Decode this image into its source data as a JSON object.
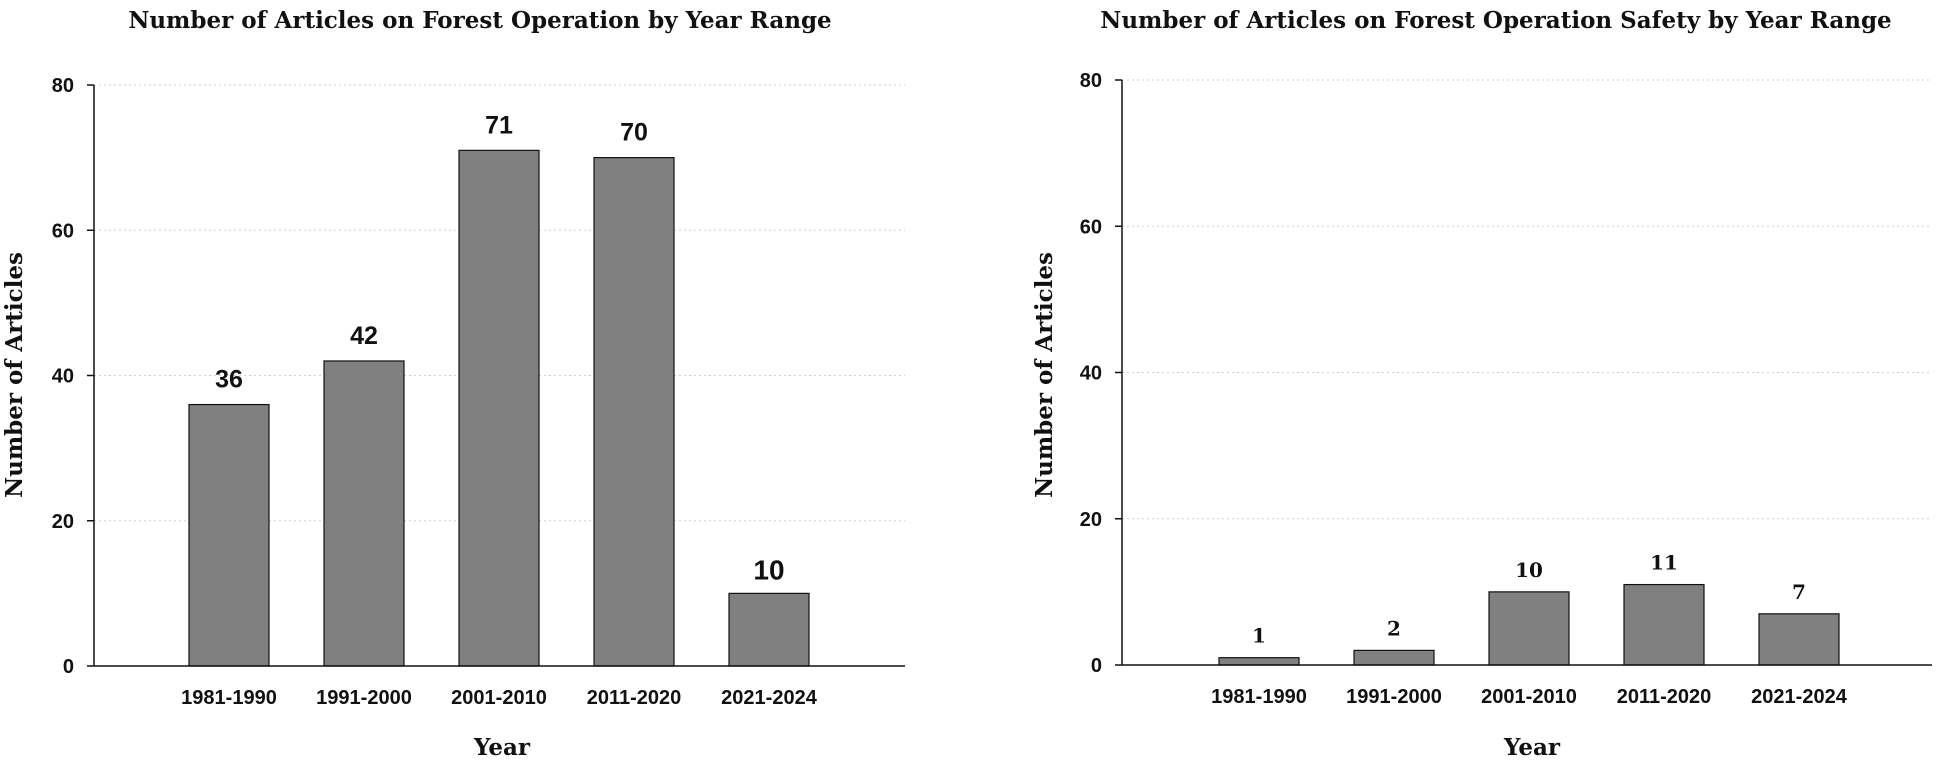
{
  "chart_data": [
    {
      "type": "bar",
      "title": "Number of Articles on Forest Operation by Year Range",
      "xlabel": "Year",
      "ylabel": "Number of Articles",
      "categories": [
        "1981-1990",
        "1991-2000",
        "2001-2010",
        "2011-2020",
        "2021-2024"
      ],
      "values": [
        36,
        42,
        71,
        70,
        10
      ],
      "data_labels": [
        "36",
        "42",
        "71",
        "70",
        "10"
      ],
      "ylim": [
        0,
        80
      ],
      "yticks": [
        "0",
        "20",
        "40",
        "60",
        "80"
      ],
      "grid": true,
      "bar_color": "#808080"
    },
    {
      "type": "bar",
      "title": "Number of Articles on Forest Operation Safety by Year Range",
      "xlabel": "Year",
      "ylabel": "Number of Articles",
      "categories": [
        "1981-1990",
        "1991-2000",
        "2001-2010",
        "2011-2020",
        "2021-2024"
      ],
      "values": [
        1,
        2,
        10,
        11,
        7
      ],
      "data_labels": [
        "1",
        "2",
        "10",
        "11",
        "7"
      ],
      "ylim": [
        0,
        80
      ],
      "yticks": [
        "0",
        "20",
        "40",
        "60",
        "80"
      ],
      "grid": true,
      "bar_color": "#808080"
    }
  ]
}
